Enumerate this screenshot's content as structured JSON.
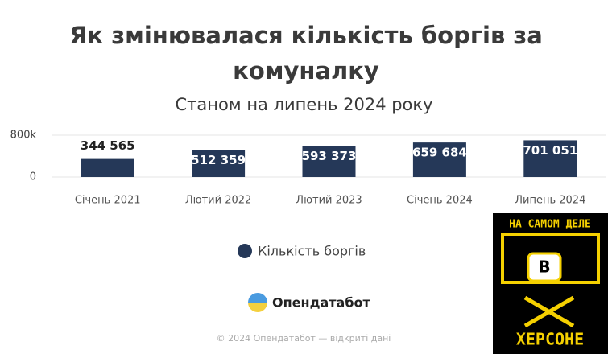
{
  "chart_data": {
    "type": "bar",
    "title": "Як змінювалася кількість боргів за комуналку",
    "subtitle": "Станом на липень 2024 року",
    "categories": [
      "Січень 2021",
      "Лютий 2022",
      "Лютий 2023",
      "Січень 2024",
      "Липень 2024"
    ],
    "series": [
      {
        "name": "Кількість боргів",
        "color": "#253858",
        "values": [
          344565,
          512359,
          593373,
          659684,
          701051
        ],
        "value_labels": [
          "344 565",
          "512 359",
          "593 373",
          "659 684",
          "701 051"
        ]
      }
    ],
    "ylim": [
      0,
      800000
    ],
    "yticks": [
      0,
      {
        "value": 800000,
        "label": "800k"
      }
    ],
    "grid": true
  },
  "brand": "Опендатабот",
  "footer": "© 2024 Опендатабот — відкриті дані",
  "watermark": {
    "top": "НА САМОМ ДЕЛЕ",
    "middle": "В",
    "bottom": "ХЕРСОНЕ"
  }
}
